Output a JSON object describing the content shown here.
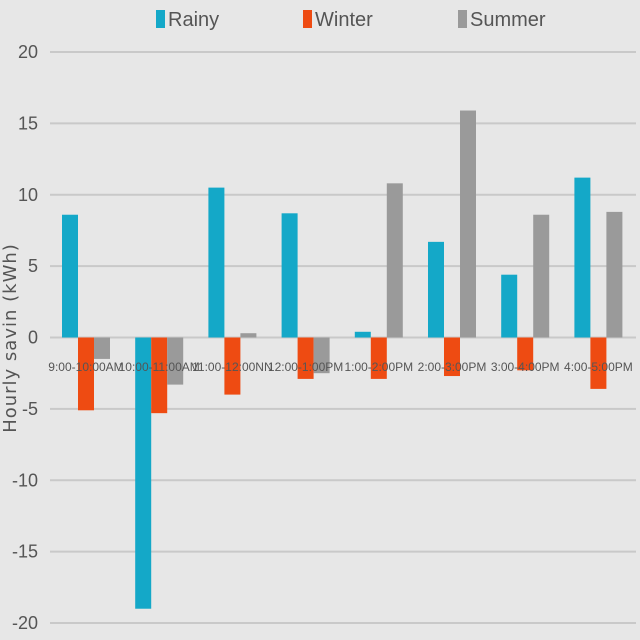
{
  "chart_data": {
    "type": "bar",
    "ylabel": "Hourly savin (kWh)",
    "ylim": [
      -20,
      20
    ],
    "yticks": [
      20,
      15,
      10,
      5,
      0,
      -5,
      -10,
      -15,
      -20
    ],
    "grid": true,
    "legend_position": "top",
    "categories": [
      "9:00-10:00AM",
      "10:00-11:00AM",
      "11:00-12:00NN",
      "12:00-1:00PM",
      "1:00-2:00PM",
      "2:00-3:00PM",
      "3:00-4:00PM",
      "4:00-5:00PM"
    ],
    "series": [
      {
        "name": "Rainy",
        "color": "#14a8c8",
        "values": [
          8.6,
          -19.0,
          10.5,
          8.7,
          0.4,
          6.7,
          4.4,
          11.2
        ]
      },
      {
        "name": "Winter",
        "color": "#ee4b12",
        "values": [
          -5.1,
          -5.3,
          -4.0,
          -2.9,
          -2.9,
          -2.7,
          -2.3,
          -3.6
        ]
      },
      {
        "name": "Summer",
        "color": "#9a9a9a",
        "values": [
          -1.5,
          -3.3,
          0.3,
          -2.5,
          10.8,
          15.9,
          8.6,
          8.8
        ]
      }
    ]
  }
}
